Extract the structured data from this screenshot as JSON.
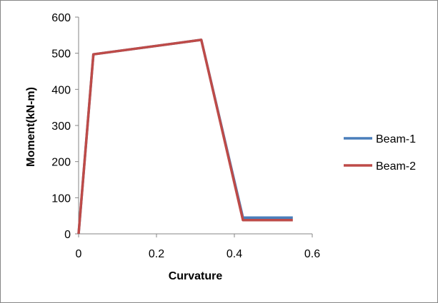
{
  "chart_data": {
    "type": "line",
    "title": "",
    "xlabel": "Curvature",
    "ylabel": "Moment(kN-m)",
    "xlim": [
      0,
      0.6
    ],
    "ylim": [
      0,
      600
    ],
    "xticks": [
      0,
      0.2,
      0.4,
      0.6
    ],
    "yticks": [
      0,
      100,
      200,
      300,
      400,
      500,
      600
    ],
    "xtick_labels": [
      "0",
      "0.2",
      "0.4",
      "0.6"
    ],
    "ytick_labels": [
      "0",
      "100",
      "200",
      "300",
      "400",
      "500",
      "600"
    ],
    "grid": false,
    "legend_position": "right",
    "series": [
      {
        "name": "Beam-1",
        "color": "#4a7ebb",
        "x": [
          0,
          0.038,
          0.315,
          0.422,
          0.55
        ],
        "y": [
          0,
          497,
          537,
          45,
          45
        ]
      },
      {
        "name": "Beam-2",
        "color": "#be4b48",
        "x": [
          0,
          0.038,
          0.315,
          0.422,
          0.55
        ],
        "y": [
          0,
          497,
          537,
          38,
          38
        ]
      }
    ]
  }
}
